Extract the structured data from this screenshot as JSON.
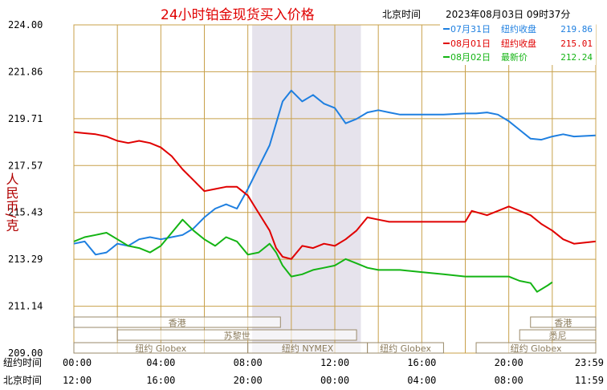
{
  "chart_data": {
    "type": "line",
    "title": "24小时铂金现货买入价格",
    "timestamp_label": "北京时间",
    "timestamp_value": "2023年08月03日 09时37分",
    "ylabel": "人民币/克",
    "ylim": [
      209.0,
      224.0
    ],
    "y_ticks": [
      "224.00",
      "221.86",
      "219.71",
      "217.57",
      "215.43",
      "213.29",
      "211.14",
      "209.00"
    ],
    "x_axis_rows": [
      {
        "label": "纽约时间",
        "ticks": [
          "00:00",
          "04:00",
          "08:00",
          "12:00",
          "16:00",
          "20:00",
          "23:59"
        ]
      },
      {
        "label": "北京时间",
        "ticks": [
          "12:00",
          "16:00",
          "20:00",
          "00:00",
          "04:00",
          "08:00",
          "11:59"
        ]
      }
    ],
    "sessions": [
      {
        "label": "香港",
        "start": 0,
        "end": 9.5
      },
      {
        "label": "苏黎世",
        "start": 2,
        "end": 13
      },
      {
        "label": "纽约 Globex",
        "start": 0,
        "end": 8
      },
      {
        "label": "纽约 NYMEX",
        "start": 8,
        "end": 13.5
      },
      {
        "label": "纽约 Globex",
        "start": 13.5,
        "end": 17
      },
      {
        "label": "悉尼",
        "start": 20.5,
        "end": 24
      },
      {
        "label": "香港",
        "start": 21,
        "end": 24
      },
      {
        "label": "纽约 Globex",
        "start": 18.5,
        "end": 24
      }
    ],
    "shaded_band": [
      8.2,
      13.2
    ],
    "series": [
      {
        "legend_date": "07月31日",
        "legend_label": "纽约收盘",
        "legend_value": "219.86",
        "color": "#1e7fe0",
        "points": [
          [
            0,
            214.0
          ],
          [
            0.5,
            214.1
          ],
          [
            1,
            213.5
          ],
          [
            1.5,
            213.6
          ],
          [
            2,
            214.0
          ],
          [
            2.5,
            213.9
          ],
          [
            3,
            214.2
          ],
          [
            3.5,
            214.3
          ],
          [
            4,
            214.2
          ],
          [
            4.5,
            214.3
          ],
          [
            5,
            214.4
          ],
          [
            5.5,
            214.7
          ],
          [
            6,
            215.2
          ],
          [
            6.5,
            215.6
          ],
          [
            7,
            215.8
          ],
          [
            7.5,
            215.6
          ],
          [
            8,
            216.5
          ],
          [
            8.5,
            217.5
          ],
          [
            9,
            218.5
          ],
          [
            9.3,
            219.5
          ],
          [
            9.6,
            220.5
          ],
          [
            10,
            221.0
          ],
          [
            10.5,
            220.5
          ],
          [
            11,
            220.8
          ],
          [
            11.5,
            220.4
          ],
          [
            12,
            220.2
          ],
          [
            12.5,
            219.5
          ],
          [
            13,
            219.7
          ],
          [
            13.5,
            220.0
          ],
          [
            14,
            220.1
          ],
          [
            14.5,
            220.0
          ],
          [
            15,
            219.9
          ],
          [
            15.5,
            219.9
          ],
          [
            16,
            219.9
          ],
          [
            17,
            219.9
          ],
          [
            18,
            219.95
          ],
          [
            18.5,
            219.95
          ],
          [
            19,
            220.0
          ],
          [
            19.5,
            219.9
          ],
          [
            20,
            219.6
          ],
          [
            20.5,
            219.2
          ],
          [
            21,
            218.8
          ],
          [
            21.5,
            218.75
          ],
          [
            22,
            218.9
          ],
          [
            22.5,
            219.0
          ],
          [
            23,
            218.9
          ],
          [
            23.99,
            218.95
          ]
        ]
      },
      {
        "legend_date": "08月01日",
        "legend_label": "纽约收盘",
        "legend_value": "215.01",
        "color": "#e00000",
        "points": [
          [
            0,
            219.1
          ],
          [
            0.5,
            219.05
          ],
          [
            1,
            219.0
          ],
          [
            1.5,
            218.9
          ],
          [
            2,
            218.7
          ],
          [
            2.5,
            218.6
          ],
          [
            3,
            218.7
          ],
          [
            3.5,
            218.6
          ],
          [
            4,
            218.4
          ],
          [
            4.5,
            218.0
          ],
          [
            5,
            217.4
          ],
          [
            5.5,
            216.9
          ],
          [
            6,
            216.4
          ],
          [
            6.5,
            216.5
          ],
          [
            7,
            216.6
          ],
          [
            7.5,
            216.6
          ],
          [
            8,
            216.2
          ],
          [
            8.5,
            215.4
          ],
          [
            9,
            214.6
          ],
          [
            9.3,
            213.8
          ],
          [
            9.6,
            213.4
          ],
          [
            10,
            213.3
          ],
          [
            10.5,
            213.9
          ],
          [
            11,
            213.8
          ],
          [
            11.5,
            214.0
          ],
          [
            12,
            213.9
          ],
          [
            12.5,
            214.2
          ],
          [
            13,
            214.6
          ],
          [
            13.5,
            215.2
          ],
          [
            14,
            215.1
          ],
          [
            14.5,
            215.0
          ],
          [
            15,
            215.0
          ],
          [
            16,
            215.0
          ],
          [
            17,
            215.0
          ],
          [
            18,
            215.0
          ],
          [
            18.3,
            215.5
          ],
          [
            19,
            215.3
          ],
          [
            19.5,
            215.5
          ],
          [
            20,
            215.7
          ],
          [
            20.5,
            215.5
          ],
          [
            21,
            215.3
          ],
          [
            21.5,
            214.9
          ],
          [
            22,
            214.6
          ],
          [
            22.5,
            214.2
          ],
          [
            23,
            214.0
          ],
          [
            23.99,
            214.1
          ]
        ]
      },
      {
        "legend_date": "08月02日",
        "legend_label": "最新价",
        "legend_value": "212.24",
        "color": "#14b414",
        "points": [
          [
            0,
            214.1
          ],
          [
            0.5,
            214.3
          ],
          [
            1,
            214.4
          ],
          [
            1.5,
            214.5
          ],
          [
            2,
            214.2
          ],
          [
            2.5,
            213.9
          ],
          [
            3,
            213.8
          ],
          [
            3.5,
            213.6
          ],
          [
            4,
            213.9
          ],
          [
            4.5,
            214.5
          ],
          [
            5,
            215.1
          ],
          [
            5.5,
            214.6
          ],
          [
            6,
            214.2
          ],
          [
            6.5,
            213.9
          ],
          [
            7,
            214.3
          ],
          [
            7.5,
            214.1
          ],
          [
            8,
            213.5
          ],
          [
            8.5,
            213.6
          ],
          [
            9,
            214.0
          ],
          [
            9.3,
            213.6
          ],
          [
            9.6,
            213.0
          ],
          [
            10,
            212.5
          ],
          [
            10.5,
            212.6
          ],
          [
            11,
            212.8
          ],
          [
            11.5,
            212.9
          ],
          [
            12,
            213.0
          ],
          [
            12.5,
            213.3
          ],
          [
            13,
            213.1
          ],
          [
            13.5,
            212.9
          ],
          [
            14,
            212.8
          ],
          [
            15,
            212.8
          ],
          [
            16,
            212.7
          ],
          [
            17,
            212.6
          ],
          [
            18,
            212.5
          ],
          [
            19,
            212.5
          ],
          [
            20,
            212.5
          ],
          [
            20.5,
            212.3
          ],
          [
            21,
            212.2
          ],
          [
            21.3,
            211.8
          ],
          [
            21.8,
            212.1
          ],
          [
            22,
            212.24
          ]
        ]
      }
    ]
  }
}
